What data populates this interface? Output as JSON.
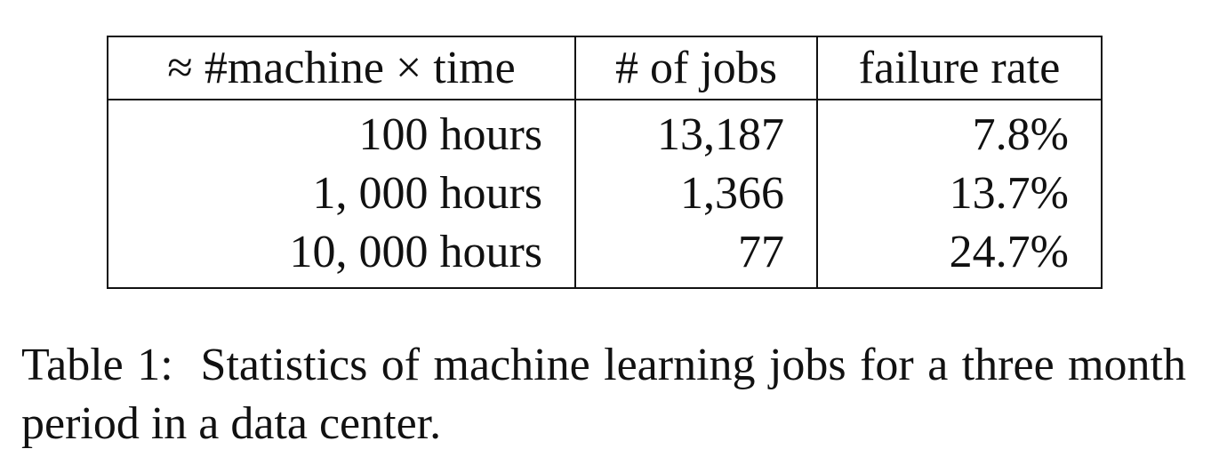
{
  "table": {
    "headers": [
      "≈ #machine × time",
      "# of jobs",
      "failure rate"
    ],
    "rows": [
      [
        "100 hours",
        "13,187",
        "7.8%"
      ],
      [
        "1, 000 hours",
        "1,366",
        "13.7%"
      ],
      [
        "10, 000 hours",
        "77",
        "24.7%"
      ]
    ]
  },
  "caption": {
    "label": "Table 1:",
    "text": "Statistics of machine learning jobs for a three month period in a data center."
  }
}
